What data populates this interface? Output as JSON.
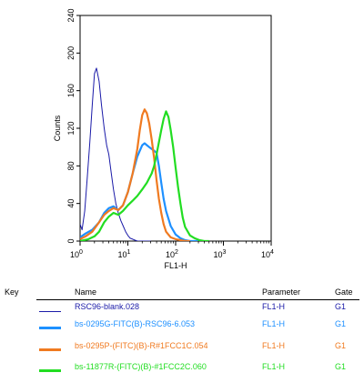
{
  "chart_data": {
    "type": "line",
    "xlabel": "FL1-H",
    "ylabel": "Counts",
    "x_scale": "log",
    "xlim": [
      1,
      10000
    ],
    "ylim": [
      0,
      240
    ],
    "x_ticks": [
      1,
      10,
      100,
      1000,
      10000
    ],
    "x_tick_labels": [
      {
        "base": "10",
        "exp": "0"
      },
      {
        "base": "10",
        "exp": "1"
      },
      {
        "base": "10",
        "exp": "2"
      },
      {
        "base": "10",
        "exp": "3"
      },
      {
        "base": "10",
        "exp": "4"
      }
    ],
    "y_ticks": [
      0,
      40,
      80,
      120,
      160,
      200,
      240
    ],
    "y_tick_labels": [
      "0",
      "40",
      "80",
      "120",
      "160",
      "200",
      "240"
    ],
    "series": [
      {
        "name": "RSC96-blank.028",
        "color": "#1a1aa8",
        "x": [
          1,
          1.1,
          1.25,
          1.4,
          1.6,
          1.8,
          2.0,
          2.2,
          2.5,
          2.8,
          3.2,
          3.6,
          4.0,
          4.5,
          5.0,
          5.6,
          6.3,
          7.1,
          8.0,
          9.0,
          10,
          11.2,
          12.6,
          14.1,
          16,
          20,
          30
        ],
        "y": [
          18,
          12,
          32,
          65,
          105,
          145,
          178,
          184,
          170,
          145,
          120,
          102,
          92,
          72,
          55,
          40,
          30,
          22,
          16,
          10,
          6,
          3,
          2,
          1,
          0,
          0,
          0
        ]
      },
      {
        "name": "bs-0295G-FITC(B)-RSC96-6.053",
        "color": "#1e90ff",
        "x": [
          1,
          1.3,
          1.8,
          2.5,
          3.2,
          4.0,
          5.0,
          6.3,
          7.9,
          10,
          12.6,
          15.8,
          20,
          22.4,
          25,
          28,
          31.6,
          35.5,
          39.8,
          44.7,
          50,
          56,
          63,
          79,
          100,
          126,
          158,
          200,
          300
        ],
        "y": [
          4,
          8,
          12,
          20,
          30,
          35,
          37,
          33,
          38,
          52,
          72,
          90,
          102,
          104,
          102,
          100,
          98,
          96,
          94,
          80,
          62,
          45,
          32,
          16,
          7,
          3,
          1,
          0,
          0
        ]
      },
      {
        "name": "bs-0295P-(FITC)(B)-R#1FCC1C.054",
        "color": "#f07a20",
        "x": [
          1,
          1.3,
          1.8,
          2.5,
          3.2,
          4.0,
          5.0,
          6.3,
          7.9,
          10,
          12.6,
          15.8,
          17.8,
          20,
          22.4,
          25,
          28,
          31.6,
          35.5,
          39.8,
          44.7,
          50,
          56,
          63,
          79,
          100,
          126,
          158,
          200
        ],
        "y": [
          2,
          5,
          10,
          20,
          28,
          32,
          35,
          33,
          38,
          52,
          72,
          98,
          118,
          134,
          140,
          136,
          125,
          108,
          88,
          65,
          45,
          30,
          18,
          10,
          4,
          2,
          1,
          0,
          0
        ]
      },
      {
        "name": "bs-11877R-(FITC)(B)-#1FCC2C.060",
        "color": "#22dd22",
        "x": [
          1,
          1.5,
          2.0,
          2.5,
          3.2,
          4.0,
          5.0,
          6.3,
          7.9,
          10,
          12.6,
          15.8,
          20,
          25,
          31.6,
          35.5,
          39.8,
          44.7,
          50,
          56,
          63,
          70.8,
          79,
          89,
          100,
          112,
          126,
          141,
          158,
          200,
          251,
          316,
          398,
          500
        ],
        "y": [
          0,
          2,
          5,
          10,
          20,
          26,
          30,
          28,
          32,
          38,
          43,
          48,
          55,
          62,
          72,
          80,
          92,
          105,
          118,
          130,
          138,
          132,
          118,
          100,
          78,
          58,
          40,
          25,
          15,
          6,
          3,
          1,
          0,
          0
        ]
      }
    ],
    "legend": {
      "headers": {
        "key": "Key",
        "name": "Name",
        "parameter": "Parameter",
        "gate": "Gate"
      },
      "rows": [
        {
          "name": "RSC96-blank.028",
          "parameter": "FL1-H",
          "gate": "G1"
        },
        {
          "name": "bs-0295G-FITC(B)-RSC96-6.053",
          "parameter": "FL1-H",
          "gate": "G1"
        },
        {
          "name": "bs-0295P-(FITC)(B)-R#1FCC1C.054",
          "parameter": "FL1-H",
          "gate": "G1"
        },
        {
          "name": "bs-11877R-(FITC)(B)-#1FCC2C.060",
          "parameter": "FL1-H",
          "gate": "G1"
        }
      ]
    }
  }
}
